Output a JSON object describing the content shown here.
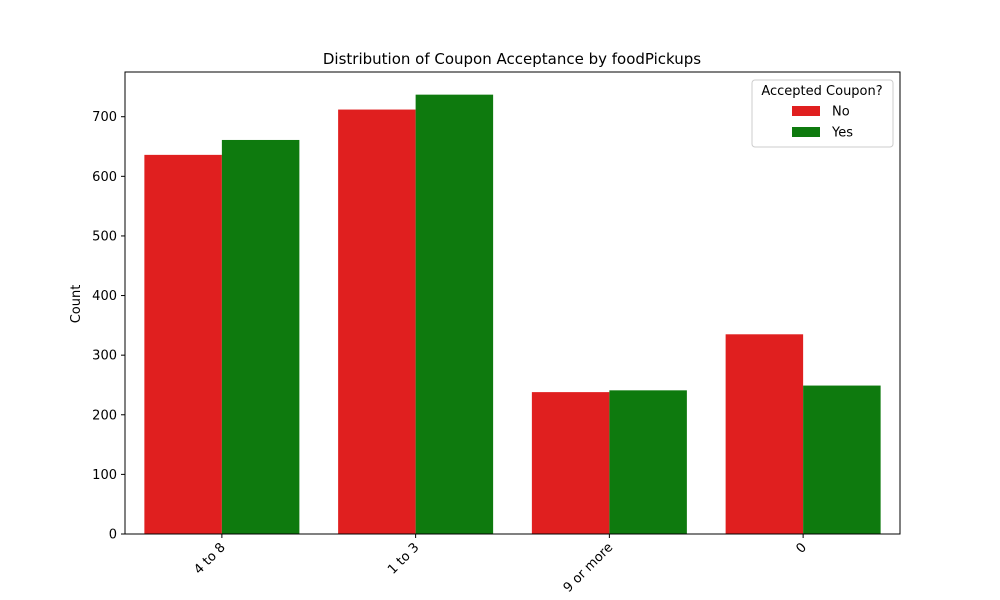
{
  "chart_data": {
    "type": "bar",
    "title": "Distribution of Coupon Acceptance by foodPickups",
    "xlabel": "",
    "ylabel": "Count",
    "categories": [
      "4 to 8",
      "1 to 3",
      "9 or more",
      "0"
    ],
    "series": [
      {
        "name": "No",
        "color": "#e01f1f",
        "values": [
          636,
          712,
          238,
          335
        ]
      },
      {
        "name": "Yes",
        "color": "#0e7a0e",
        "values": [
          661,
          737,
          241,
          249
        ]
      }
    ],
    "ylim": [
      0,
      775
    ],
    "yticks": [
      0,
      100,
      200,
      300,
      400,
      500,
      600,
      700
    ],
    "grid": false,
    "legend": {
      "title": "Accepted Coupon?",
      "placement": "top-right"
    }
  }
}
